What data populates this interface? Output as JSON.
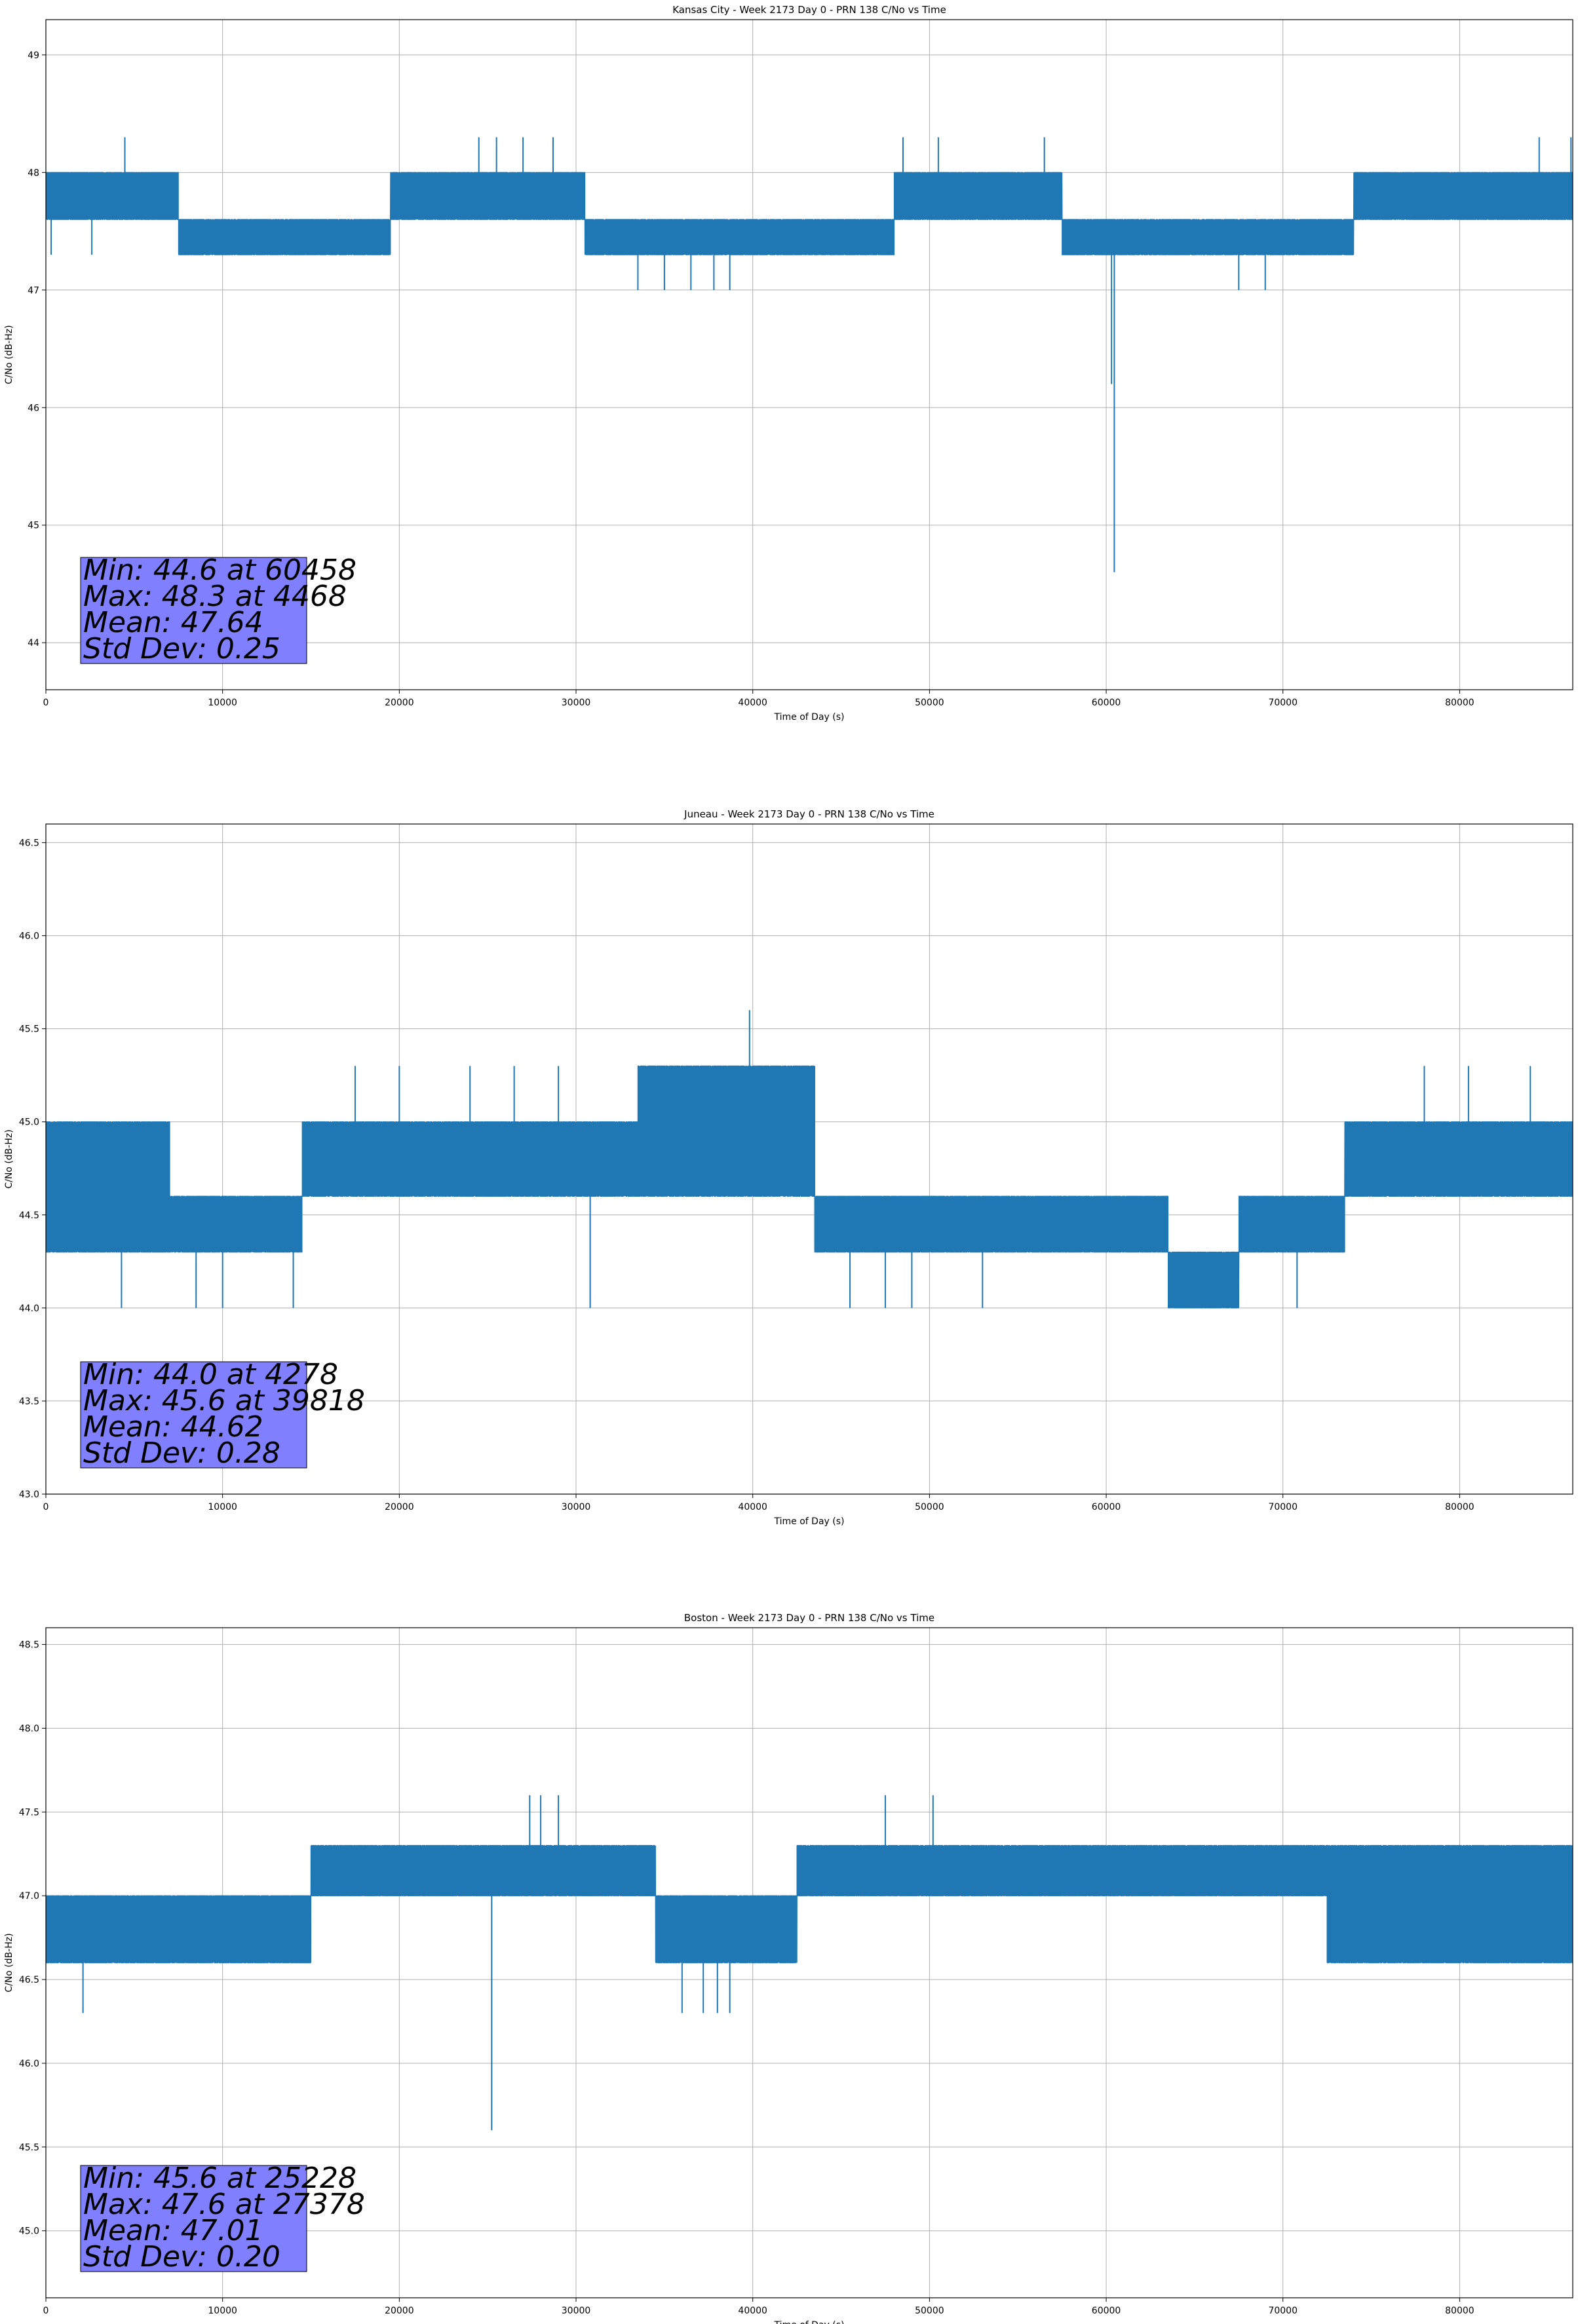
{
  "figure": {
    "background": "#ffffff"
  },
  "chart_data": [
    {
      "type": "line",
      "title": "Kansas City - Week 2173 Day 0 - PRN 138 C/No vs Time",
      "xlabel": "Time of Day (s)",
      "ylabel": "C/No (dB-Hz)",
      "xlim": [
        0,
        86400
      ],
      "ylim": [
        43.6,
        49.3
      ],
      "xticks": [
        0,
        10000,
        20000,
        30000,
        40000,
        50000,
        60000,
        70000,
        80000
      ],
      "yticks": [
        44,
        45,
        46,
        47,
        48,
        49
      ],
      "ytick_labels": [
        "44",
        "45",
        "46",
        "47",
        "48",
        "49"
      ],
      "grid": true,
      "line_color": "#1f77b4",
      "stats_box_color": "#8080ff",
      "stats": [
        "Min: 44.6 at 60458",
        "Max: 48.3 at 4468",
        "Mean: 47.64",
        "Std Dev: 0.25"
      ],
      "series": [
        {
          "segments": [
            {
              "x": [
                0,
                7500
              ],
              "levels": [
                47.6,
                48.0
              ]
            },
            {
              "x": [
                7500,
                19500
              ],
              "levels": [
                47.3,
                47.6
              ]
            },
            {
              "x": [
                19500,
                30500
              ],
              "levels": [
                47.6,
                48.0
              ]
            },
            {
              "x": [
                30500,
                48000
              ],
              "levels": [
                47.3,
                47.6
              ]
            },
            {
              "x": [
                48000,
                57500
              ],
              "levels": [
                47.6,
                48.0
              ]
            },
            {
              "x": [
                57500,
                74000
              ],
              "levels": [
                47.3,
                47.6
              ]
            },
            {
              "x": [
                74000,
                86400
              ],
              "levels": [
                47.6,
                48.0
              ]
            }
          ],
          "spikes": [
            [
              4468,
              48.3
            ],
            [
              24500,
              48.3
            ],
            [
              25500,
              48.3
            ],
            [
              27000,
              48.3
            ],
            [
              28700,
              48.3
            ],
            [
              48500,
              48.3
            ],
            [
              50500,
              48.3
            ],
            [
              56500,
              48.3
            ],
            [
              84500,
              48.3
            ],
            [
              86300,
              48.3
            ],
            [
              33500,
              47.0
            ],
            [
              35000,
              47.0
            ],
            [
              36500,
              47.0
            ],
            [
              37800,
              47.0
            ],
            [
              38700,
              47.0
            ],
            [
              60300,
              46.2
            ],
            [
              60458,
              44.6
            ],
            [
              67500,
              47.0
            ],
            [
              69000,
              47.0
            ],
            [
              300,
              47.3
            ],
            [
              2600,
              47.3
            ]
          ]
        }
      ]
    },
    {
      "type": "line",
      "title": "Juneau - Week 2173 Day 0 - PRN 138 C/No vs Time",
      "xlabel": "Time of Day (s)",
      "ylabel": "C/No (dB-Hz)",
      "xlim": [
        0,
        86400
      ],
      "ylim": [
        43.0,
        46.6
      ],
      "xticks": [
        0,
        10000,
        20000,
        30000,
        40000,
        50000,
        60000,
        70000,
        80000
      ],
      "yticks": [
        43.0,
        43.5,
        44.0,
        44.5,
        45.0,
        45.5,
        46.0,
        46.5
      ],
      "ytick_labels": [
        "43.0",
        "43.5",
        "44.0",
        "44.5",
        "45.0",
        "45.5",
        "46.0",
        "46.5"
      ],
      "grid": true,
      "line_color": "#1f77b4",
      "stats_box_color": "#8080ff",
      "stats": [
        "Min: 44.0 at 4278",
        "Max: 45.6 at 39818",
        "Mean: 44.62",
        "Std Dev: 0.28"
      ],
      "series": [
        {
          "segments": [
            {
              "x": [
                0,
                7000
              ],
              "levels": [
                44.3,
                45.0
              ]
            },
            {
              "x": [
                7000,
                14500
              ],
              "levels": [
                44.3,
                44.6
              ]
            },
            {
              "x": [
                14500,
                33500
              ],
              "levels": [
                44.6,
                45.0
              ]
            },
            {
              "x": [
                33500,
                43500
              ],
              "levels": [
                44.6,
                45.3
              ]
            },
            {
              "x": [
                43500,
                63500
              ],
              "levels": [
                44.3,
                44.6
              ]
            },
            {
              "x": [
                63500,
                67500
              ],
              "levels": [
                44.0,
                44.3
              ]
            },
            {
              "x": [
                67500,
                73500
              ],
              "levels": [
                44.3,
                44.6
              ]
            },
            {
              "x": [
                73500,
                86400
              ],
              "levels": [
                44.6,
                45.0
              ]
            }
          ],
          "spikes": [
            [
              4278,
              44.0
            ],
            [
              8500,
              44.0
            ],
            [
              10000,
              44.0
            ],
            [
              14000,
              44.0
            ],
            [
              30800,
              44.0
            ],
            [
              45500,
              44.0
            ],
            [
              47500,
              44.0
            ],
            [
              49000,
              44.0
            ],
            [
              53000,
              44.0
            ],
            [
              70800,
              44.0
            ],
            [
              39818,
              45.6
            ],
            [
              17500,
              45.3
            ],
            [
              20000,
              45.3
            ],
            [
              24000,
              45.3
            ],
            [
              26500,
              45.3
            ],
            [
              29000,
              45.3
            ],
            [
              78000,
              45.3
            ],
            [
              80500,
              45.3
            ],
            [
              84000,
              45.3
            ]
          ]
        }
      ]
    },
    {
      "type": "line",
      "title": "Boston - Week 2173 Day 0 - PRN 138 C/No vs Time",
      "xlabel": "Time of Day (s)",
      "ylabel": "C/No (dB-Hz)",
      "xlim": [
        0,
        86400
      ],
      "ylim": [
        44.6,
        48.6
      ],
      "xticks": [
        0,
        10000,
        20000,
        30000,
        40000,
        50000,
        60000,
        70000,
        80000
      ],
      "yticks": [
        45.0,
        45.5,
        46.0,
        46.5,
        47.0,
        47.5,
        48.0,
        48.5
      ],
      "ytick_labels": [
        "45.0",
        "45.5",
        "46.0",
        "46.5",
        "47.0",
        "47.5",
        "48.0",
        "48.5"
      ],
      "grid": true,
      "line_color": "#1f77b4",
      "stats_box_color": "#8080ff",
      "stats": [
        "Min: 45.6 at 25228",
        "Max: 47.6 at 27378",
        "Mean: 47.01",
        "Std Dev: 0.20"
      ],
      "series": [
        {
          "segments": [
            {
              "x": [
                0,
                15000
              ],
              "levels": [
                46.6,
                47.0
              ]
            },
            {
              "x": [
                15000,
                34500
              ],
              "levels": [
                47.0,
                47.3
              ]
            },
            {
              "x": [
                34500,
                42500
              ],
              "levels": [
                46.6,
                47.0
              ]
            },
            {
              "x": [
                42500,
                72500
              ],
              "levels": [
                47.0,
                47.3
              ]
            },
            {
              "x": [
                72500,
                86400
              ],
              "levels": [
                46.6,
                47.3
              ]
            }
          ],
          "spikes": [
            [
              2100,
              46.3
            ],
            [
              25228,
              45.6
            ],
            [
              36000,
              46.3
            ],
            [
              37200,
              46.3
            ],
            [
              38000,
              46.3
            ],
            [
              38700,
              46.3
            ],
            [
              27378,
              47.6
            ],
            [
              28000,
              47.6
            ],
            [
              29000,
              47.6
            ],
            [
              47500,
              47.6
            ],
            [
              50200,
              47.6
            ]
          ]
        }
      ]
    }
  ]
}
